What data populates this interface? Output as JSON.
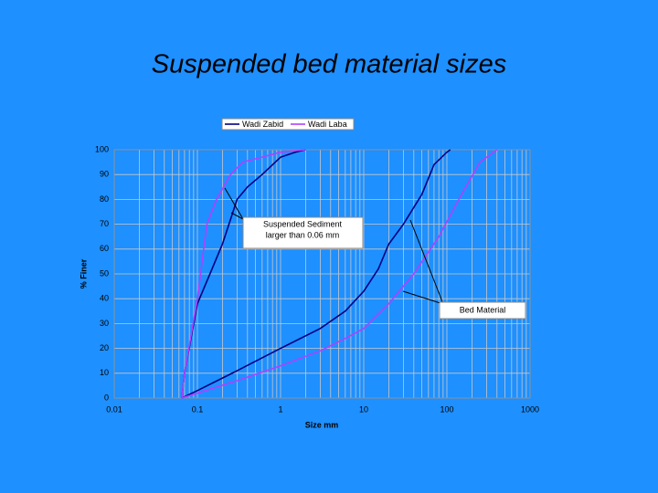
{
  "chart_data": {
    "type": "line",
    "title": "Suspended bed material sizes",
    "xlabel": "Size mm",
    "ylabel": "% Finer",
    "xscale": "log",
    "xlim": [
      0.01,
      1000
    ],
    "ylim": [
      0,
      100
    ],
    "xticks": [
      0.01,
      0.1,
      1,
      10,
      100,
      1000
    ],
    "yticks": [
      0,
      10,
      20,
      30,
      40,
      50,
      60,
      70,
      80,
      90,
      100
    ],
    "grid": true,
    "legend": "top",
    "series": [
      {
        "name": "Wadi Zabid",
        "color": "#00007f",
        "x": [
          0.065,
          0.07,
          0.1,
          0.15,
          0.2,
          0.3,
          0.4,
          0.6,
          1,
          1.5,
          2,
          null,
          0.065,
          0.1,
          0.3,
          1,
          3,
          6,
          10,
          15,
          20,
          30,
          50,
          70,
          100,
          110
        ],
        "values": [
          0,
          10,
          38,
          52,
          62,
          80,
          85,
          90,
          97,
          99,
          100,
          null,
          0,
          3,
          11,
          20,
          28,
          35,
          43,
          52,
          62,
          70,
          82,
          94,
          99,
          100
        ]
      },
      {
        "name": "Wadi Laba",
        "color": "#b040ff",
        "x": [
          0.065,
          0.07,
          0.1,
          0.13,
          0.17,
          0.25,
          0.35,
          0.6,
          1,
          2,
          null,
          0.065,
          0.1,
          0.3,
          1,
          3,
          6,
          10,
          20,
          40,
          80,
          150,
          250,
          400
        ],
        "values": [
          0,
          10,
          40,
          70,
          80,
          90,
          95,
          97,
          99,
          100,
          null,
          0,
          2,
          7,
          13,
          19,
          24,
          28,
          38,
          50,
          65,
          82,
          95,
          100
        ]
      }
    ],
    "annotations": [
      {
        "text": [
          "Suspended Sediment",
          "larger than 0.06 mm"
        ]
      },
      {
        "text": [
          "Bed Material"
        ]
      }
    ]
  }
}
